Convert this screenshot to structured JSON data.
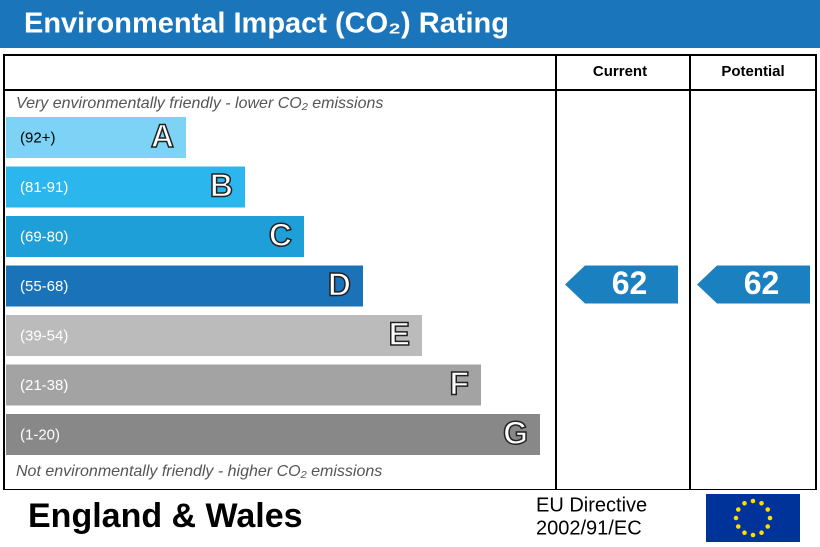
{
  "header": {
    "title": "Environmental Impact (CO₂) Rating"
  },
  "columns": {
    "current": "Current",
    "potential": "Potential"
  },
  "notes": {
    "top": "Very environmentally friendly - lower CO₂ emissions",
    "bottom": "Not environmentally friendly - higher CO₂ emissions"
  },
  "bands": [
    {
      "range": "(92+)",
      "letter": "A",
      "color": "#7dd3f5"
    },
    {
      "range": "(81-91)",
      "letter": "B",
      "color": "#2bb6ee"
    },
    {
      "range": "(69-80)",
      "letter": "C",
      "color": "#1e9fd8"
    },
    {
      "range": "(55-68)",
      "letter": "D",
      "color": "#1a72b9"
    },
    {
      "range": "(39-54)",
      "letter": "E",
      "color": "#bbbbbb"
    },
    {
      "range": "(21-38)",
      "letter": "F",
      "color": "#a3a3a3"
    },
    {
      "range": "(1-20)",
      "letter": "G",
      "color": "#888888"
    }
  ],
  "ratings": {
    "current": 62,
    "potential": 62,
    "color": "#1a80c0"
  },
  "footer": {
    "region": "England & Wales",
    "directive": "EU Directive",
    "code": "2002/91/EC"
  }
}
